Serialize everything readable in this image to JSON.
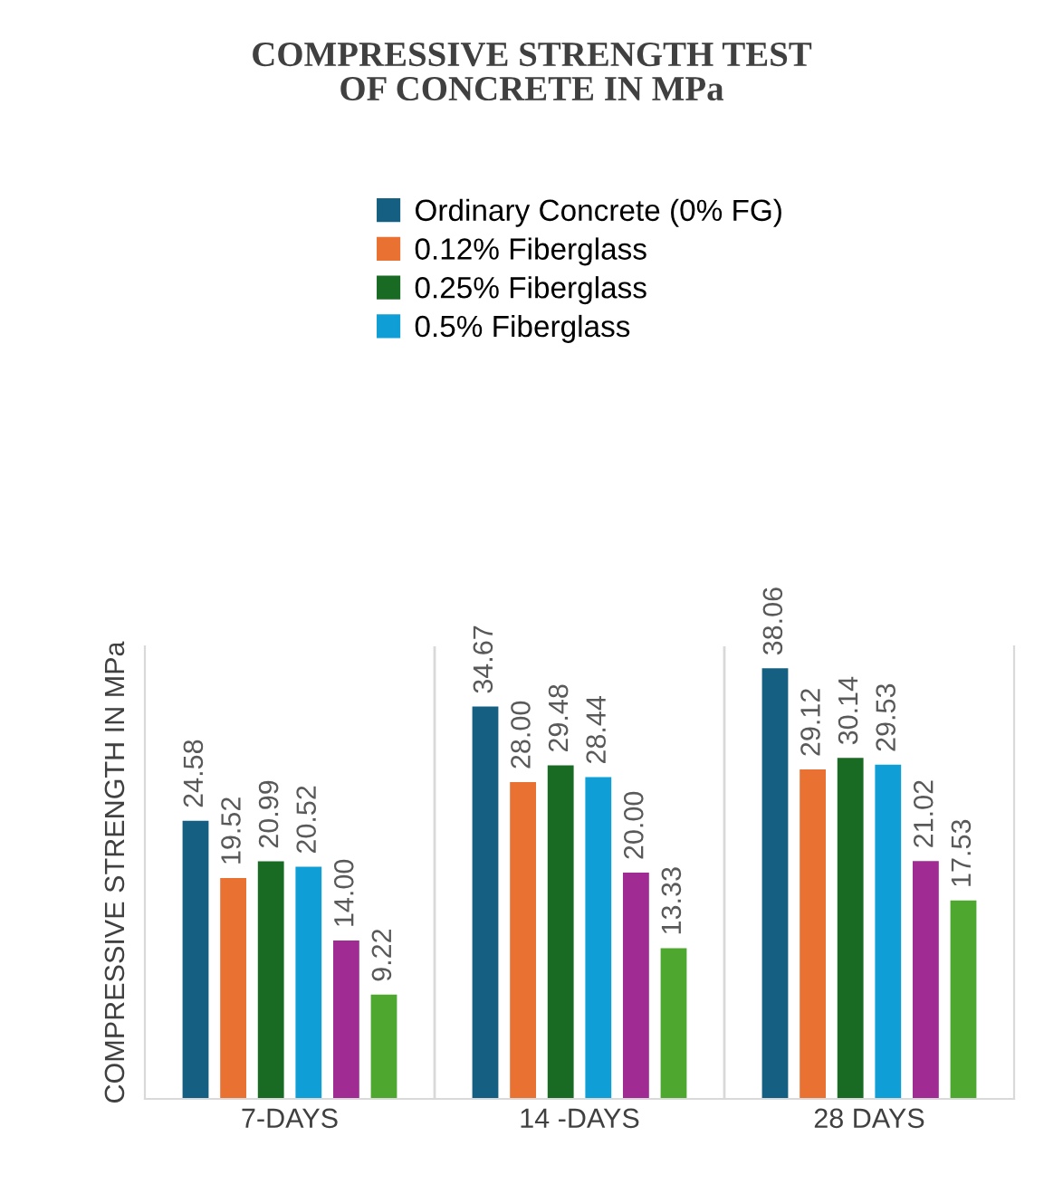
{
  "chart_data": {
    "type": "bar",
    "title": "COMPRESSIVE STRENGTH TEST\nOF CONCRETE IN MPa",
    "ylabel": "COMPRESSIVE STRENGTH IN MPa",
    "categories": [
      "7-DAYS",
      "14 -DAYS",
      "28 DAYS"
    ],
    "series": [
      {
        "name": "Ordinary Concrete (0% FG)",
        "color": "#156082",
        "values": [
          24.58,
          34.67,
          38.06
        ],
        "value_labels": [
          "24.58",
          "34.67",
          "38.06"
        ]
      },
      {
        "name": "0.12% Fiberglass",
        "color": "#e97132",
        "values": [
          19.52,
          28.0,
          29.12
        ],
        "value_labels": [
          "19.52",
          "28.00",
          "29.12"
        ]
      },
      {
        "name": "0.25% Fiberglass",
        "color": "#196b24",
        "values": [
          20.99,
          29.48,
          30.14
        ],
        "value_labels": [
          "20.99",
          "29.48",
          "30.14"
        ]
      },
      {
        "name": "0.5% Fiberglass",
        "color": "#0f9ed5",
        "values": [
          20.52,
          28.44,
          29.53
        ],
        "value_labels": [
          "20.52",
          "28.44",
          "29.53"
        ]
      },
      {
        "color": "#a02b93",
        "values": [
          14.0,
          20.0,
          21.02
        ],
        "value_labels": [
          "14.00",
          "20.00",
          "21.02"
        ]
      },
      {
        "color": "#4ea72e",
        "values": [
          9.22,
          13.33,
          17.53
        ],
        "value_labels": [
          "9.22",
          "13.33",
          "17.53"
        ]
      }
    ],
    "ylim": [
      0,
      40
    ],
    "tick_labels": "x",
    "grid": "x",
    "legend": "top"
  }
}
